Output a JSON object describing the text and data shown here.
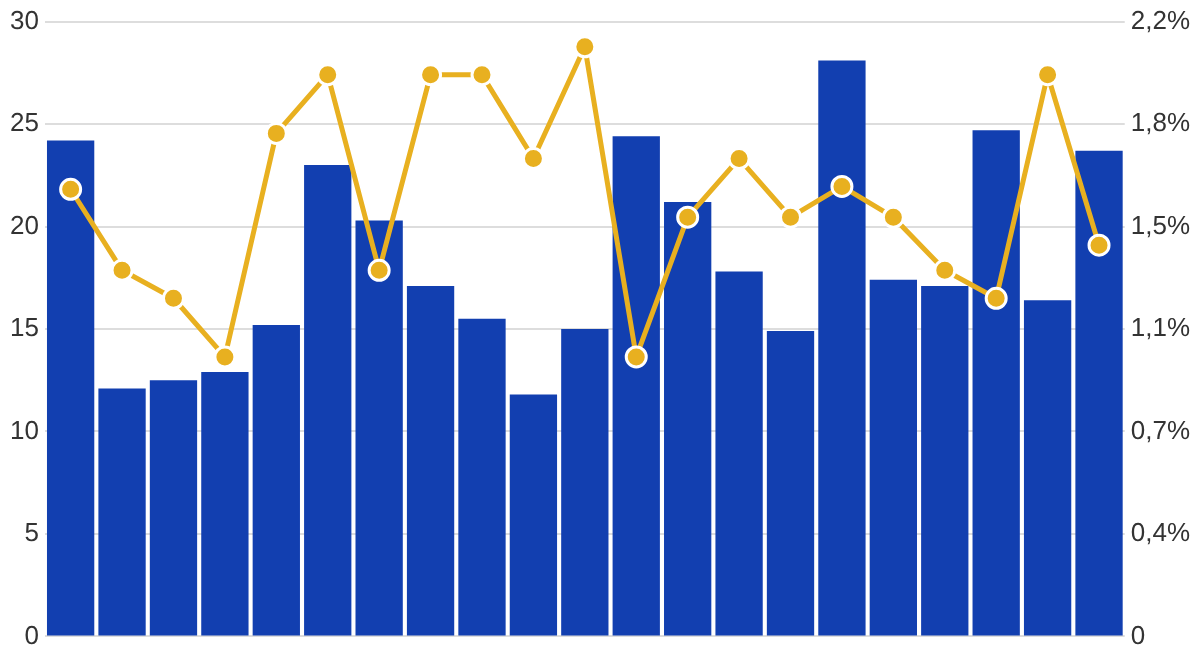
{
  "chart_data": {
    "type": "bar",
    "categories": [
      null,
      null,
      null,
      null,
      null,
      null,
      null,
      null,
      null,
      null,
      null,
      null,
      null,
      null,
      null,
      null,
      null,
      null,
      null,
      null,
      null
    ],
    "series": [
      {
        "color": "#123fb0",
        "values": [
          24.2,
          12.1,
          12.5,
          12.9,
          15.2,
          23.0,
          20.3,
          17.1,
          15.5,
          11.8,
          15.0,
          24.4,
          21.2,
          17.8,
          14.9,
          28.1,
          17.4,
          17.1,
          24.7,
          16.4,
          23.7
        ]
      },
      {
        "type": "line",
        "axis": "y2",
        "color": "#e8b020",
        "marker": "circle",
        "line_style": "solid",
        "values": [
          1.6,
          1.31,
          1.21,
          1.0,
          1.8,
          2.01,
          1.31,
          2.01,
          2.01,
          1.71,
          2.11,
          1.0,
          1.5,
          1.71,
          1.5,
          1.61,
          1.5,
          1.31,
          1.21,
          2.01,
          1.4
        ]
      }
    ],
    "ylim": [
      0,
      30
    ],
    "yticks": [
      0,
      5,
      10,
      15,
      20,
      25,
      30
    ],
    "y2lim": [
      0,
      2.2
    ],
    "y2ticks": [
      0,
      {
        "value": 0.3667,
        "label": "0,4%"
      },
      {
        "value": 0.7333,
        "label": "0,7%"
      },
      {
        "value": 1.1,
        "label": "1,1%"
      },
      {
        "value": 1.4667,
        "label": "1,5%"
      },
      {
        "value": 1.8333,
        "label": "1,8%"
      },
      {
        "value": 2.2,
        "label": "2,2%"
      }
    ],
    "grid": "y",
    "legend": false,
    "tick_labels": "y"
  }
}
